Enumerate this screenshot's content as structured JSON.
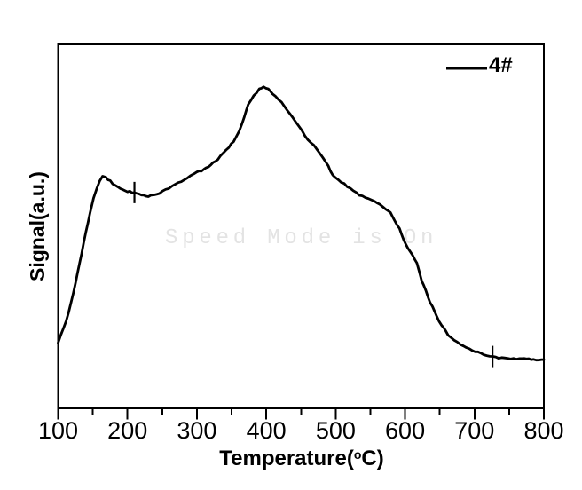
{
  "figure": {
    "background": "#ffffff",
    "watermark": {
      "text": "Speed Mode is On",
      "color": "#e3e3e3"
    }
  },
  "chart_data": {
    "type": "line",
    "title": "",
    "xlabel": "Temperature(°C)",
    "xlabel_parts": {
      "pre": "Temperature(",
      "degree": "o",
      "post": "C)"
    },
    "ylabel": "Signal(a.u.)",
    "grid": false,
    "x_axis": {
      "min": 100,
      "max": 800,
      "major_tick_step": 100,
      "minor_tick_step": 50,
      "major_tick_labels": [
        "100",
        "200",
        "300",
        "400",
        "500",
        "600",
        "700",
        "800"
      ]
    },
    "y_axis": {
      "min": 0,
      "max": 1,
      "units": "a.u.",
      "ticks_visible": false
    },
    "legend": {
      "label": "4#",
      "position": "top-right",
      "line_color": "#000000"
    },
    "curve_marker_ticks_x": [
      210,
      726
    ],
    "series": [
      {
        "name": "4#",
        "color": "#000000",
        "x_temperature_C": [
          100,
          108,
          115,
          122,
          128,
          134,
          140,
          146,
          151,
          156,
          160,
          164,
          169,
          175,
          182,
          190,
          200,
          210,
          220,
          230,
          238,
          246,
          255,
          264,
          273,
          282,
          291,
          300,
          310,
          320,
          330,
          338,
          346,
          353,
          361,
          368,
          374,
          382,
          390,
          396,
          403,
          409,
          422,
          434,
          447,
          460,
          473,
          486,
          496,
          508,
          521,
          534,
          547,
          560,
          572,
          579,
          585,
          592,
          598,
          604,
          611,
          617,
          624,
          630,
          636,
          643,
          649,
          656,
          662,
          671,
          684,
          697,
          709,
          722,
          735,
          752,
          765,
          775,
          785,
          793,
          800
        ],
        "y_signal_au": [
          0.18,
          0.22,
          0.263,
          0.317,
          0.371,
          0.427,
          0.483,
          0.537,
          0.576,
          0.605,
          0.624,
          0.638,
          0.634,
          0.625,
          0.612,
          0.602,
          0.596,
          0.593,
          0.588,
          0.583,
          0.585,
          0.59,
          0.6,
          0.61,
          0.62,
          0.629,
          0.639,
          0.648,
          0.656,
          0.668,
          0.685,
          0.703,
          0.718,
          0.733,
          0.763,
          0.8,
          0.837,
          0.86,
          0.876,
          0.883,
          0.878,
          0.866,
          0.841,
          0.81,
          0.773,
          0.739,
          0.712,
          0.678,
          0.641,
          0.622,
          0.605,
          0.585,
          0.578,
          0.566,
          0.549,
          0.537,
          0.517,
          0.493,
          0.463,
          0.439,
          0.42,
          0.398,
          0.349,
          0.322,
          0.293,
          0.263,
          0.239,
          0.22,
          0.202,
          0.188,
          0.171,
          0.159,
          0.151,
          0.144,
          0.139,
          0.137,
          0.137,
          0.136,
          0.135,
          0.134,
          0.134
        ]
      }
    ]
  }
}
